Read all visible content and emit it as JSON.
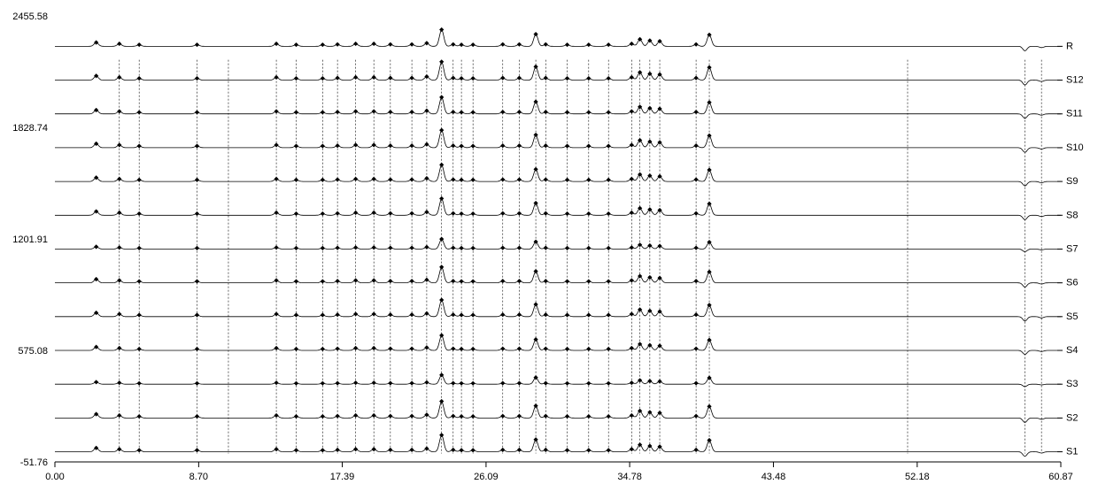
{
  "chart": {
    "type": "stacked-line-chromatogram",
    "background_color": "#ffffff",
    "trace_color": "#000000",
    "guide_color": "#000000",
    "xlim": [
      0.0,
      60.87
    ],
    "ylim": [
      -51.76,
      2455.58
    ],
    "x_ticks": [
      0.0,
      8.7,
      17.39,
      26.09,
      34.78,
      43.48,
      52.18,
      60.87
    ],
    "y_ticks": [
      -51.76,
      575.08,
      1201.91,
      1828.74,
      2455.58
    ],
    "guides_x": [
      3.9,
      5.1,
      8.6,
      10.5,
      13.4,
      14.6,
      16.2,
      17.1,
      18.2,
      19.3,
      20.3,
      21.6,
      22.5,
      23.4,
      24.1,
      24.6,
      25.3,
      27.1,
      28.1,
      29.1,
      29.7,
      31.0,
      32.3,
      33.5,
      34.9,
      35.4,
      36.0,
      36.6,
      38.8,
      39.6,
      51.6,
      58.7,
      59.7
    ],
    "trace_labels": [
      "S1",
      "S2",
      "S3",
      "S4",
      "S5",
      "S6",
      "S7",
      "S8",
      "S9",
      "S10",
      "S11",
      "S12",
      "R"
    ],
    "peak_schema": [
      {
        "x": 2.5,
        "h": 0.12
      },
      {
        "x": 3.9,
        "h": 0.08
      },
      {
        "x": 5.1,
        "h": 0.05
      },
      {
        "x": 8.6,
        "h": 0.05
      },
      {
        "x": 13.4,
        "h": 0.08
      },
      {
        "x": 14.6,
        "h": 0.05
      },
      {
        "x": 16.2,
        "h": 0.05
      },
      {
        "x": 17.1,
        "h": 0.06
      },
      {
        "x": 18.2,
        "h": 0.08
      },
      {
        "x": 19.3,
        "h": 0.08
      },
      {
        "x": 20.3,
        "h": 0.06
      },
      {
        "x": 21.6,
        "h": 0.06
      },
      {
        "x": 22.5,
        "h": 0.1
      },
      {
        "x": 23.4,
        "h": 0.52
      },
      {
        "x": 24.1,
        "h": 0.06
      },
      {
        "x": 24.6,
        "h": 0.05
      },
      {
        "x": 25.3,
        "h": 0.05
      },
      {
        "x": 27.1,
        "h": 0.06
      },
      {
        "x": 28.1,
        "h": 0.06
      },
      {
        "x": 29.1,
        "h": 0.38
      },
      {
        "x": 29.7,
        "h": 0.06
      },
      {
        "x": 31.0,
        "h": 0.05
      },
      {
        "x": 32.3,
        "h": 0.05
      },
      {
        "x": 33.5,
        "h": 0.05
      },
      {
        "x": 34.9,
        "h": 0.08
      },
      {
        "x": 35.4,
        "h": 0.22
      },
      {
        "x": 36.0,
        "h": 0.18
      },
      {
        "x": 36.6,
        "h": 0.16
      },
      {
        "x": 38.8,
        "h": 0.06
      },
      {
        "x": 39.6,
        "h": 0.36
      },
      {
        "x": 58.7,
        "h": -0.14
      },
      {
        "x": 59.7,
        "h": -0.04
      }
    ],
    "label_fontsize": 11
  }
}
